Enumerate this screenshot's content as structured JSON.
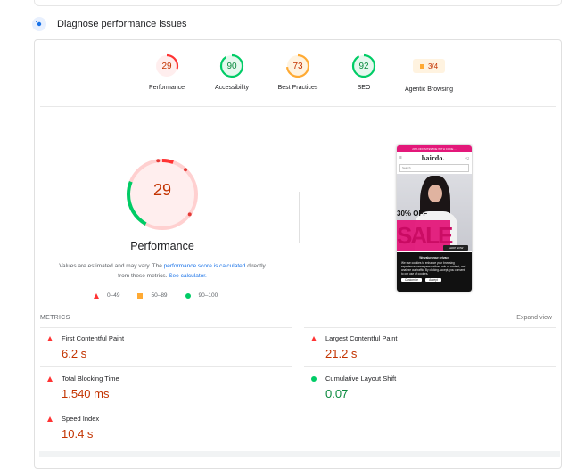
{
  "section": {
    "title": "Diagnose performance issues"
  },
  "categories": [
    {
      "label": "Performance",
      "score": "29",
      "value": 29,
      "color": "#ff3333",
      "fill": "#ffeeee",
      "text": "#c33300"
    },
    {
      "label": "Accessibility",
      "score": "90",
      "value": 90,
      "color": "#00cc66",
      "fill": "#e6f8ee",
      "text": "#0a8a3e"
    },
    {
      "label": "Best Practices",
      "score": "73",
      "value": 73,
      "color": "#ffaa33",
      "fill": "#fff3e0",
      "text": "#c33300"
    },
    {
      "label": "SEO",
      "score": "92",
      "value": 92,
      "color": "#00cc66",
      "fill": "#e6f8ee",
      "text": "#0a8a3e"
    },
    {
      "label": "Agentic Browsing",
      "score": "3/4"
    }
  ],
  "performance": {
    "score": "29",
    "value": 29,
    "title": "Performance",
    "note_prefix": "Values are estimated and may vary. The ",
    "note_link": "performance score is calculated",
    "note_mid": " directly from these metrics. ",
    "note_calc": "See calculator.",
    "legend": [
      "0–49",
      "50–89",
      "90–100"
    ]
  },
  "screenshot": {
    "promo": "20% OFF SITEWIDE WITH CODE ...",
    "logo": "hairdo.",
    "search": "Search",
    "sale_top": "30% OFF",
    "sale_big": "SALE",
    "button": "SHOP NOW",
    "consent_title": "We value your privacy",
    "consent_text": "We use cookies to enhance your browsing experience, serve personalized ads or content, and analyze our traffic. By clicking Accept, you consent to our use of cookies.",
    "btn_customize": "Customize",
    "btn_accept": "Accept"
  },
  "metrics": {
    "title": "METRICS",
    "expand": "Expand view",
    "items": [
      {
        "name": "First Contentful Paint",
        "value": "6.2 s",
        "status": "fail"
      },
      {
        "name": "Largest Contentful Paint",
        "value": "21.2 s",
        "status": "fail"
      },
      {
        "name": "Total Blocking Time",
        "value": "1,540 ms",
        "status": "fail"
      },
      {
        "name": "Cumulative Layout Shift",
        "value": "0.07",
        "status": "pass"
      },
      {
        "name": "Speed Index",
        "value": "10.4 s",
        "status": "fail"
      }
    ]
  }
}
